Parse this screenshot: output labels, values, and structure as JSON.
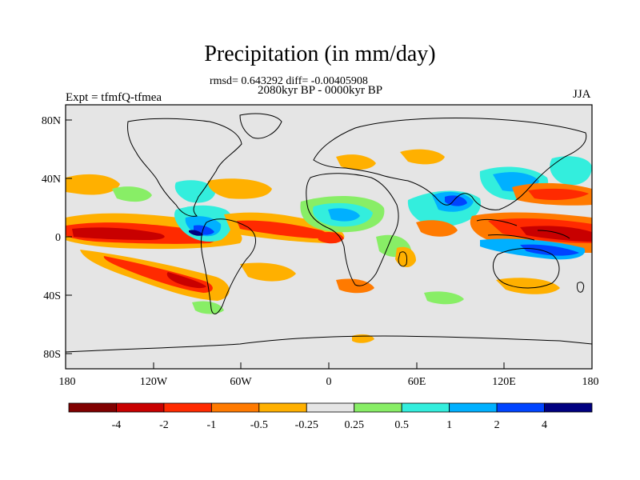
{
  "map": {
    "title": "Precipitation (in mm/day)",
    "stats_line": "rmsd= 0.643292 diff= -0.00405908",
    "period": "2080kyr BP - 0000kyr BP",
    "experiment": "Expt = tfmfQ-tfmea",
    "season": "JJA",
    "lat_ticks": [
      "80N",
      "40N",
      "0",
      "40S",
      "80S"
    ],
    "lon_ticks": [
      "180",
      "120W",
      "60W",
      "0",
      "60E",
      "120E",
      "180"
    ],
    "colorbar": {
      "labels": [
        "-4",
        "-2",
        "-1",
        "-0.5",
        "-0.25",
        "0.25",
        "0.5",
        "1",
        "2",
        "4"
      ],
      "colors": [
        "#800000",
        "#c80000",
        "#ff2a00",
        "#ff7a00",
        "#ffb000",
        "#e5e5e5",
        "#88ee66",
        "#33eedd",
        "#00b0ff",
        "#0044ff",
        "#000080"
      ]
    }
  }
}
